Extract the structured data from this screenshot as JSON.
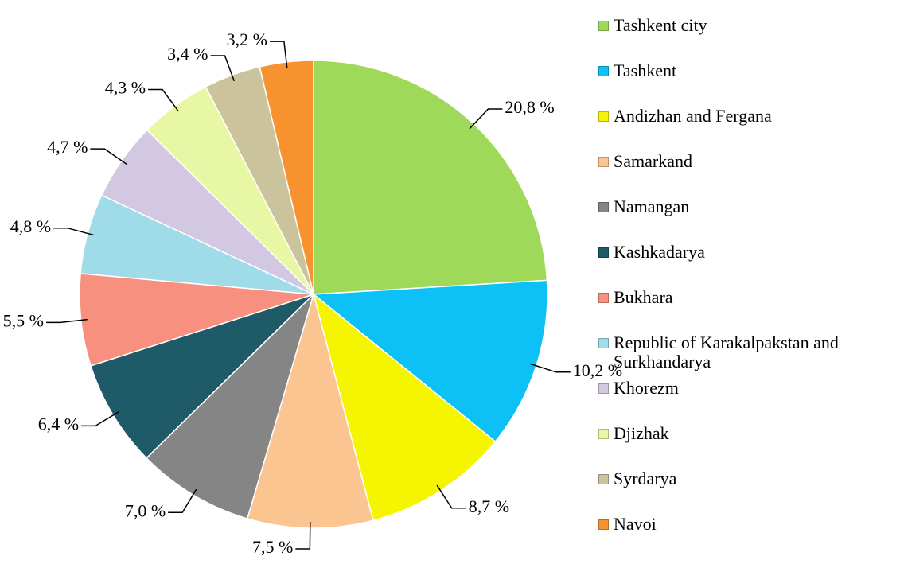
{
  "chart_data": {
    "type": "pie",
    "categories": [
      "Tashkent city",
      "Tashkent",
      "Andizhan and Fergana",
      "Samarkand",
      "Namangan",
      "Kashkadarya",
      "Bukhara",
      "Republic of Karakalpakstan and Surkhandarya",
      "Khorezm",
      "Djizhak",
      "Syrdarya",
      "Navoi"
    ],
    "values": [
      20.8,
      10.2,
      8.7,
      7.5,
      7.0,
      6.4,
      5.5,
      4.8,
      4.7,
      4.3,
      3.4,
      3.2
    ],
    "value_labels": [
      "20,8 %",
      "10,2 %",
      "8,7 %",
      "7,5 %",
      "7,0 %",
      "6,4 %",
      "5,5 %",
      "4,8 %",
      "4,7 %",
      "4,3 %",
      "3,4 %",
      "3,2 %"
    ],
    "colors": [
      "#9fd95a",
      "#0dc0f5",
      "#f5f500",
      "#fbc592",
      "#858585",
      "#1f5a69",
      "#f7907f",
      "#9fdbe8",
      "#d2c8e2",
      "#e8f7a3",
      "#cbc39c",
      "#f7922e"
    ],
    "legend": "right"
  }
}
